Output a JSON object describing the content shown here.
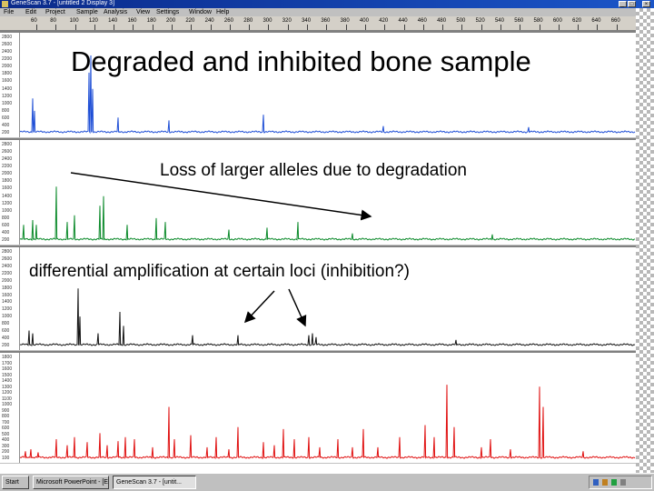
{
  "window": {
    "title": "GeneScan 3.7 - [untitled 2 Display 3]",
    "title_controls": [
      "_",
      "□",
      "×"
    ]
  },
  "menubar": {
    "items": [
      "File",
      "Edit",
      "Project",
      "Sample",
      "Analysis",
      "View",
      "Settings",
      "Window",
      "Help"
    ]
  },
  "ruler": {
    "labels": [
      "60",
      "80",
      "100",
      "120",
      "140",
      "160",
      "180",
      "200",
      "220",
      "240",
      "260",
      "280",
      "300",
      "320",
      "340",
      "360",
      "380",
      "400",
      "420",
      "440",
      "460",
      "480",
      "500",
      "520",
      "540",
      "560",
      "580",
      "600",
      "620",
      "640",
      "660"
    ]
  },
  "panels": [
    {
      "id": "panel-blue",
      "color": "#1f4fd6",
      "y_ticks": [
        "2800",
        "2600",
        "2400",
        "2200",
        "2000",
        "1800",
        "1600",
        "1400",
        "1200",
        "1000",
        "800",
        "600",
        "400",
        "200"
      ],
      "peaks": [
        [
          14,
          0.35
        ],
        [
          16,
          0.22
        ],
        [
          76,
          0.62
        ],
        [
          78,
          0.8
        ],
        [
          80,
          0.45
        ],
        [
          108,
          0.15
        ],
        [
          164,
          0.12
        ],
        [
          268,
          0.18
        ],
        [
          400,
          0.06
        ],
        [
          560,
          0.05
        ]
      ]
    },
    {
      "id": "panel-green",
      "color": "#0b8a2a",
      "y_ticks": [
        "2800",
        "2600",
        "2400",
        "2200",
        "2000",
        "1800",
        "1600",
        "1400",
        "1200",
        "1000",
        "800",
        "600",
        "400",
        "200"
      ],
      "peaks": [
        [
          4,
          0.15
        ],
        [
          14,
          0.2
        ],
        [
          18,
          0.15
        ],
        [
          40,
          0.55
        ],
        [
          52,
          0.18
        ],
        [
          60,
          0.25
        ],
        [
          88,
          0.35
        ],
        [
          92,
          0.45
        ],
        [
          118,
          0.15
        ],
        [
          150,
          0.22
        ],
        [
          160,
          0.18
        ],
        [
          230,
          0.1
        ],
        [
          272,
          0.12
        ],
        [
          306,
          0.18
        ],
        [
          366,
          0.06
        ],
        [
          520,
          0.05
        ]
      ]
    },
    {
      "id": "panel-black",
      "color": "#111111",
      "y_ticks": [
        "2800",
        "2600",
        "2400",
        "2200",
        "2000",
        "1800",
        "1600",
        "1400",
        "1200",
        "1000",
        "800",
        "600",
        "400",
        "200"
      ],
      "peaks": [
        [
          10,
          0.15
        ],
        [
          14,
          0.12
        ],
        [
          64,
          0.6
        ],
        [
          66,
          0.3
        ],
        [
          86,
          0.12
        ],
        [
          110,
          0.35
        ],
        [
          114,
          0.2
        ],
        [
          190,
          0.1
        ],
        [
          240,
          0.1
        ],
        [
          318,
          0.1
        ],
        [
          322,
          0.12
        ],
        [
          326,
          0.08
        ],
        [
          480,
          0.05
        ]
      ]
    },
    {
      "id": "panel-red",
      "color": "#e01010",
      "y_ticks": [
        "1800",
        "1700",
        "1600",
        "1500",
        "1400",
        "1300",
        "1200",
        "1100",
        "1000",
        "900",
        "800",
        "700",
        "600",
        "500",
        "400",
        "300",
        "200",
        "100"
      ],
      "peaks": [
        [
          6,
          0.06
        ],
        [
          12,
          0.08
        ],
        [
          20,
          0.05
        ],
        [
          40,
          0.18
        ],
        [
          52,
          0.12
        ],
        [
          60,
          0.2
        ],
        [
          74,
          0.15
        ],
        [
          88,
          0.24
        ],
        [
          96,
          0.12
        ],
        [
          108,
          0.16
        ],
        [
          116,
          0.2
        ],
        [
          126,
          0.18
        ],
        [
          146,
          0.1
        ],
        [
          164,
          0.5
        ],
        [
          170,
          0.18
        ],
        [
          188,
          0.22
        ],
        [
          206,
          0.1
        ],
        [
          216,
          0.2
        ],
        [
          230,
          0.08
        ],
        [
          240,
          0.3
        ],
        [
          268,
          0.15
        ],
        [
          280,
          0.12
        ],
        [
          290,
          0.28
        ],
        [
          302,
          0.18
        ],
        [
          318,
          0.2
        ],
        [
          330,
          0.1
        ],
        [
          350,
          0.18
        ],
        [
          366,
          0.1
        ],
        [
          378,
          0.28
        ],
        [
          394,
          0.1
        ],
        [
          418,
          0.2
        ],
        [
          446,
          0.32
        ],
        [
          456,
          0.2
        ],
        [
          470,
          0.72
        ],
        [
          478,
          0.3
        ],
        [
          508,
          0.1
        ],
        [
          518,
          0.18
        ],
        [
          540,
          0.08
        ],
        [
          572,
          0.7
        ],
        [
          576,
          0.5
        ],
        [
          620,
          0.06
        ]
      ]
    }
  ],
  "annotations": {
    "title": "Degraded and inhibited bone sample",
    "degradation": "Loss of larger alleles due to degradation",
    "inhibition": "differential amplification at certain loci (inhibition?)"
  },
  "taskbar": {
    "start": "Start",
    "buttons": [
      "Microsoft PowerPoint - [E...",
      "GeneScan 3.7 - [untit..."
    ],
    "clock": ""
  }
}
